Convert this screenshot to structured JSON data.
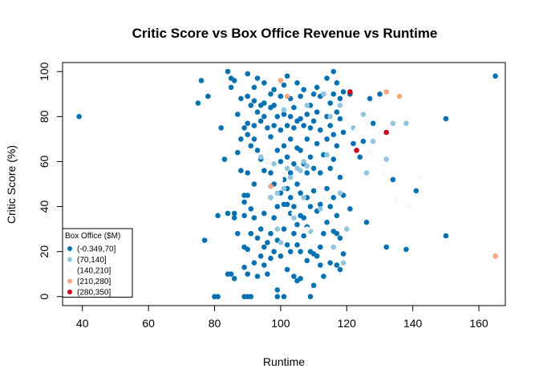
{
  "chart_data": {
    "type": "scatter",
    "title": "Critic Score vs Box Office Revenue vs Runtime",
    "xlabel": "Runtime",
    "ylabel": "Critic Score (%)",
    "xlim": [
      34,
      168
    ],
    "ylim": [
      -4,
      104
    ],
    "xticks": [
      40,
      60,
      80,
      100,
      120,
      140,
      160
    ],
    "yticks": [
      0,
      20,
      40,
      60,
      80,
      100
    ],
    "grid": false,
    "legend": {
      "title": "Box Office ($M)",
      "placement": "bottom-left",
      "entries": [
        {
          "label": "(-0.349,70]",
          "color": "#0571b0"
        },
        {
          "label": "(70,140]",
          "color": "#92c5de"
        },
        {
          "label": "(140,210]",
          "color": "#f7f7f7"
        },
        {
          "label": "(210,280]",
          "color": "#f4a582"
        },
        {
          "label": "(280,350]",
          "color": "#ca0020"
        }
      ]
    },
    "series": [
      {
        "name": "(-0.349,70]",
        "color": "#0571b0",
        "points": [
          [
            39,
            80
          ],
          [
            75,
            86
          ],
          [
            76,
            96
          ],
          [
            77,
            25
          ],
          [
            78,
            89
          ],
          [
            80,
            0
          ],
          [
            81,
            0
          ],
          [
            81,
            36
          ],
          [
            82,
            75
          ],
          [
            83,
            61
          ],
          [
            84,
            100
          ],
          [
            84,
            10
          ],
          [
            84,
            37
          ],
          [
            85,
            10
          ],
          [
            85,
            97
          ],
          [
            85,
            93
          ],
          [
            86,
            96
          ],
          [
            86,
            37
          ],
          [
            86,
            35
          ],
          [
            86,
            8
          ],
          [
            87,
            64
          ],
          [
            87,
            81
          ],
          [
            87,
            28
          ],
          [
            88,
            88
          ],
          [
            88,
            70
          ],
          [
            88,
            56
          ],
          [
            89,
            75
          ],
          [
            89,
            45
          ],
          [
            89,
            42
          ],
          [
            89,
            36
          ],
          [
            89,
            22
          ],
          [
            89,
            13
          ],
          [
            89,
            0
          ],
          [
            90,
            99
          ],
          [
            90,
            89
          ],
          [
            90,
            77
          ],
          [
            90,
            72
          ],
          [
            90,
            55
          ],
          [
            90,
            45
          ],
          [
            90,
            21
          ],
          [
            90,
            10
          ],
          [
            90,
            0
          ],
          [
            91,
            85
          ],
          [
            91,
            67
          ],
          [
            91,
            39
          ],
          [
            91,
            28
          ],
          [
            91,
            0
          ],
          [
            92,
            93
          ],
          [
            92,
            87
          ],
          [
            92,
            76
          ],
          [
            92,
            70
          ],
          [
            92,
            50
          ],
          [
            92,
            35
          ],
          [
            92,
            15
          ],
          [
            93,
            97
          ],
          [
            93,
            82
          ],
          [
            93,
            65
          ],
          [
            93,
            26
          ],
          [
            93,
            9
          ],
          [
            94,
            85
          ],
          [
            94,
            78
          ],
          [
            94,
            61
          ],
          [
            94,
            30
          ],
          [
            94,
            18
          ],
          [
            95,
            95
          ],
          [
            95,
            86
          ],
          [
            95,
            80
          ],
          [
            95,
            56
          ],
          [
            95,
            37
          ],
          [
            95,
            22
          ],
          [
            95,
            14
          ],
          [
            96,
            75
          ],
          [
            96,
            60
          ],
          [
            96,
            24
          ],
          [
            96,
            10
          ],
          [
            97,
            90
          ],
          [
            97,
            84
          ],
          [
            97,
            71
          ],
          [
            97,
            55
          ],
          [
            97,
            44
          ],
          [
            97,
            28
          ],
          [
            97,
            17
          ],
          [
            98,
            92
          ],
          [
            98,
            85
          ],
          [
            98,
            76
          ],
          [
            98,
            50
          ],
          [
            98,
            35
          ],
          [
            98,
            20
          ],
          [
            99,
            80
          ],
          [
            99,
            65
          ],
          [
            99,
            40
          ],
          [
            99,
            25
          ],
          [
            99,
            3
          ],
          [
            99,
            0
          ],
          [
            100,
            89
          ],
          [
            100,
            74
          ],
          [
            100,
            60
          ],
          [
            100,
            46
          ],
          [
            100,
            18
          ],
          [
            101,
            94
          ],
          [
            101,
            81
          ],
          [
            101,
            67
          ],
          [
            101,
            52
          ],
          [
            101,
            41
          ],
          [
            101,
            30
          ],
          [
            101,
            0
          ],
          [
            102,
            98
          ],
          [
            102,
            76
          ],
          [
            102,
            62
          ],
          [
            102,
            48
          ],
          [
            102,
            41
          ],
          [
            102,
            23
          ],
          [
            102,
            12
          ],
          [
            103,
            88
          ],
          [
            103,
            80
          ],
          [
            103,
            70
          ],
          [
            103,
            55
          ],
          [
            103,
            44
          ],
          [
            103,
            37
          ],
          [
            103,
            20
          ],
          [
            104,
            84
          ],
          [
            104,
            75
          ],
          [
            104,
            59
          ],
          [
            104,
            40
          ],
          [
            104,
            28
          ],
          [
            104,
            9
          ],
          [
            105,
            95
          ],
          [
            105,
            78
          ],
          [
            105,
            66
          ],
          [
            105,
            50
          ],
          [
            105,
            32
          ],
          [
            105,
            23
          ],
          [
            105,
            7
          ],
          [
            106,
            89
          ],
          [
            106,
            79
          ],
          [
            106,
            65
          ],
          [
            106,
            46
          ],
          [
            106,
            36
          ],
          [
            106,
            20
          ],
          [
            106,
            8
          ],
          [
            107,
            92
          ],
          [
            107,
            76
          ],
          [
            107,
            59
          ],
          [
            107,
            35
          ],
          [
            107,
            27
          ],
          [
            108,
            81
          ],
          [
            108,
            70
          ],
          [
            108,
            55
          ],
          [
            108,
            44
          ],
          [
            108,
            31
          ],
          [
            108,
            16
          ],
          [
            109,
            85
          ],
          [
            109,
            75
          ],
          [
            109,
            62
          ],
          [
            109,
            40
          ],
          [
            109,
            20
          ],
          [
            109,
            0
          ],
          [
            110,
            90
          ],
          [
            110,
            78
          ],
          [
            110,
            57
          ],
          [
            110,
            47
          ],
          [
            110,
            19
          ],
          [
            110,
            5
          ],
          [
            111,
            93
          ],
          [
            111,
            82
          ],
          [
            111,
            68
          ],
          [
            111,
            38
          ],
          [
            111,
            18
          ],
          [
            112,
            89
          ],
          [
            112,
            74
          ],
          [
            112,
            55
          ],
          [
            112,
            41
          ],
          [
            112,
            22
          ],
          [
            112,
            14
          ],
          [
            113,
            90
          ],
          [
            113,
            63
          ],
          [
            113,
            28
          ],
          [
            113,
            9
          ],
          [
            114,
            97
          ],
          [
            114,
            80
          ],
          [
            114,
            70
          ],
          [
            114,
            48
          ],
          [
            114,
            33
          ],
          [
            115,
            86
          ],
          [
            115,
            76
          ],
          [
            115,
            57
          ],
          [
            115,
            40
          ],
          [
            115,
            15
          ],
          [
            116,
            90
          ],
          [
            116,
            100
          ],
          [
            116,
            72
          ],
          [
            116,
            61
          ],
          [
            116,
            44
          ],
          [
            116,
            29
          ],
          [
            117,
            95
          ],
          [
            117,
            82
          ],
          [
            117,
            67
          ],
          [
            117,
            36
          ],
          [
            117,
            28
          ],
          [
            117,
            14
          ],
          [
            118,
            88
          ],
          [
            118,
            79
          ],
          [
            118,
            53
          ],
          [
            118,
            26
          ],
          [
            118,
            12
          ],
          [
            119,
            91
          ],
          [
            119,
            73
          ],
          [
            119,
            45
          ],
          [
            119,
            19
          ],
          [
            121,
            90
          ],
          [
            121,
            39
          ],
          [
            122,
            68
          ],
          [
            124,
            62
          ],
          [
            125,
            69
          ],
          [
            126,
            33
          ],
          [
            127,
            88
          ],
          [
            128,
            77
          ],
          [
            130,
            90
          ],
          [
            132,
            22
          ],
          [
            134,
            52
          ],
          [
            138,
            21
          ],
          [
            141,
            47
          ],
          [
            150,
            27
          ],
          [
            150,
            79
          ],
          [
            165,
            98
          ]
        ]
      },
      {
        "name": "(70,140]",
        "color": "#92c5de",
        "points": [
          [
            94,
            62
          ],
          [
            97,
            44
          ],
          [
            98,
            59
          ],
          [
            99,
            46
          ],
          [
            99,
            30
          ],
          [
            100,
            24
          ],
          [
            101,
            83
          ],
          [
            101,
            48
          ],
          [
            102,
            57
          ],
          [
            103,
            53
          ],
          [
            104,
            35
          ],
          [
            105,
            57
          ],
          [
            106,
            56
          ],
          [
            107,
            60
          ],
          [
            107,
            44
          ],
          [
            108,
            58
          ],
          [
            108,
            85
          ],
          [
            109,
            29
          ],
          [
            112,
            39
          ],
          [
            113,
            90
          ],
          [
            114,
            63
          ],
          [
            115,
            80
          ],
          [
            116,
            22
          ],
          [
            118,
            85
          ],
          [
            118,
            46
          ],
          [
            119,
            15
          ],
          [
            120,
            30
          ],
          [
            122,
            75
          ],
          [
            125,
            81
          ],
          [
            126,
            55
          ],
          [
            128,
            69
          ],
          [
            132,
            61
          ],
          [
            134,
            77
          ],
          [
            138,
            77
          ]
        ]
      },
      {
        "name": "(140,210]",
        "color": "#f7f7f7",
        "points": [
          [
            96,
            60
          ],
          [
            100,
            52
          ],
          [
            104,
            37
          ],
          [
            108,
            30
          ],
          [
            113,
            44
          ],
          [
            117,
            56
          ],
          [
            121,
            44
          ],
          [
            123,
            74
          ],
          [
            127,
            64
          ],
          [
            131,
            55
          ],
          [
            135,
            43
          ],
          [
            139,
            40
          ],
          [
            142,
            53
          ]
        ]
      },
      {
        "name": "(210,280]",
        "color": "#f4a582",
        "points": [
          [
            97,
            49
          ],
          [
            100,
            96
          ],
          [
            102,
            89
          ],
          [
            132,
            91
          ],
          [
            136,
            89
          ],
          [
            165,
            18
          ]
        ]
      },
      {
        "name": "(280,350]",
        "color": "#ca0020",
        "points": [
          [
            121,
            91
          ],
          [
            123,
            65
          ],
          [
            132,
            73
          ]
        ]
      }
    ]
  }
}
